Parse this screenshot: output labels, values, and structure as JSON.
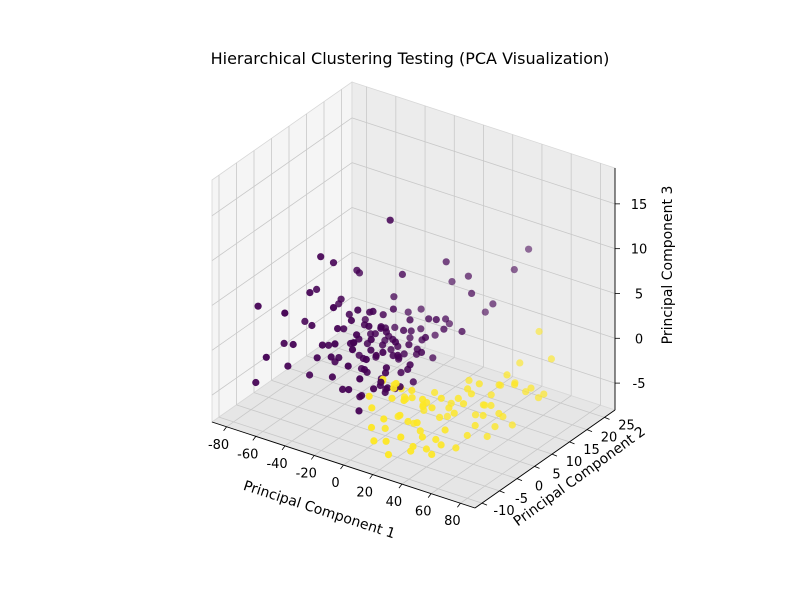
{
  "chart_data": {
    "type": "scatter",
    "projection": "3d",
    "title": "Hierarchical Clustering Testing (PCA Visualization)",
    "xlabel": "Principal Component 1",
    "ylabel": "Principal Component 2",
    "zlabel": "Principal Component 3",
    "xlim": [
      -90,
      90
    ],
    "ylim": [
      -12,
      28
    ],
    "zlim": [
      -8,
      19
    ],
    "xticks": [
      -80,
      -60,
      -40,
      -20,
      0,
      20,
      40,
      60,
      80
    ],
    "yticks": [
      -10,
      -5,
      0,
      5,
      10,
      15,
      20,
      25
    ],
    "zticks": [
      -5,
      0,
      5,
      10,
      15
    ],
    "grid": true,
    "colors": {
      "cluster_0": "#440154",
      "cluster_1": "#fde725"
    },
    "series": [
      {
        "cluster": 0,
        "points": [
          [
            -68,
            -8,
            5
          ],
          [
            -72,
            -7,
            -4
          ],
          [
            -60,
            -9,
            0
          ],
          [
            -55,
            -6,
            1
          ],
          [
            -50,
            -7,
            -1
          ],
          [
            -44,
            -8,
            2
          ],
          [
            -40,
            -5,
            -2
          ],
          [
            -48,
            -3,
            3
          ],
          [
            -36,
            -6,
            4
          ],
          [
            -30,
            -7,
            1
          ],
          [
            -25,
            -4,
            0
          ],
          [
            -18,
            -8,
            2
          ],
          [
            -20,
            -2,
            5
          ],
          [
            -12,
            -5,
            3
          ],
          [
            -8,
            -3,
            1
          ],
          [
            -15,
            -6,
            -2
          ],
          [
            -5,
            -7,
            4
          ],
          [
            -10,
            -1,
            2
          ],
          [
            -3,
            -4,
            0
          ],
          [
            2,
            -5,
            3
          ],
          [
            -6,
            -2,
            6
          ],
          [
            0,
            -6,
            1
          ],
          [
            4,
            -3,
            5
          ],
          [
            -2,
            0,
            2
          ],
          [
            6,
            -4,
            -1
          ],
          [
            8,
            -6,
            3
          ],
          [
            3,
            -1,
            4
          ],
          [
            -9,
            1,
            0
          ],
          [
            10,
            -2,
            2
          ],
          [
            1,
            -8,
            -3
          ],
          [
            -14,
            -1,
            -1
          ],
          [
            7,
            -7,
            5
          ],
          [
            12,
            -5,
            1
          ],
          [
            -4,
            -9,
            2
          ],
          [
            5,
            0,
            3
          ],
          [
            -7,
            -5,
            7
          ],
          [
            9,
            -1,
            -2
          ],
          [
            -1,
            2,
            1
          ],
          [
            14,
            -3,
            4
          ],
          [
            -11,
            -3,
            3
          ],
          [
            11,
            -8,
            0
          ],
          [
            -16,
            -7,
            5
          ],
          [
            2,
            -2,
            -1
          ],
          [
            -20,
            -5,
            1
          ],
          [
            6,
            1,
            2
          ],
          [
            15,
            -6,
            2
          ],
          [
            -6,
            -8,
            -1
          ],
          [
            3,
            -6,
            6
          ],
          [
            -13,
            -9,
            4
          ],
          [
            16,
            0,
            3
          ],
          [
            -3,
            -7,
            5
          ],
          [
            8,
            2,
            1
          ],
          [
            0,
            0,
            4
          ],
          [
            -8,
            -4,
            -3
          ],
          [
            13,
            -1,
            0
          ],
          [
            18,
            -4,
            3
          ],
          [
            -17,
            -2,
            2
          ],
          [
            4,
            -9,
            1
          ],
          [
            -22,
            -6,
            -1
          ],
          [
            10,
            1,
            4
          ],
          [
            -5,
            3,
            2
          ],
          [
            12,
            2,
            5
          ],
          [
            20,
            -2,
            1
          ],
          [
            -9,
            -6,
            6
          ],
          [
            1,
            -4,
            7
          ],
          [
            -24,
            -8,
            3
          ],
          [
            7,
            -3,
            -2
          ],
          [
            -2,
            -6,
            -2
          ],
          [
            15,
            -7,
            4
          ],
          [
            17,
            2,
            2
          ],
          [
            -10,
            4,
            1
          ],
          [
            22,
            -5,
            0
          ],
          [
            -19,
            -4,
            4
          ],
          [
            6,
            -8,
            3
          ],
          [
            -4,
            1,
            5
          ],
          [
            9,
            -5,
            6
          ],
          [
            19,
            0,
            -1
          ],
          [
            -12,
            -1,
            4
          ],
          [
            2,
            3,
            0
          ],
          [
            -7,
            0,
            3
          ],
          [
            14,
            3,
            1
          ],
          [
            -15,
            2,
            2
          ],
          [
            11,
            -4,
            -1
          ],
          [
            3,
            1,
            6
          ],
          [
            -27,
            -5,
            2
          ],
          [
            24,
            -3,
            2
          ],
          [
            -1,
            -9,
            4
          ],
          [
            5,
            -2,
            -2
          ],
          [
            -18,
            0,
            0
          ],
          [
            8,
            4,
            3
          ],
          [
            25,
            1,
            4
          ],
          [
            -8,
            6,
            2
          ],
          [
            20,
            4,
            5
          ],
          [
            -3,
            5,
            -1
          ],
          [
            16,
            -8,
            1
          ],
          [
            -21,
            3,
            3
          ],
          [
            13,
            5,
            2
          ],
          [
            0,
            7,
            1
          ],
          [
            27,
            -1,
            3
          ],
          [
            -11,
            7,
            5
          ],
          [
            5,
            8,
            2
          ],
          [
            18,
            6,
            0
          ],
          [
            -6,
            9,
            3
          ],
          [
            22,
            8,
            4
          ],
          [
            10,
            10,
            1
          ],
          [
            30,
            2,
            6
          ],
          [
            -2,
            11,
            3
          ],
          [
            15,
            12,
            2
          ],
          [
            -28,
            -1,
            6
          ],
          [
            28,
            5,
            4
          ],
          [
            -25,
            3,
            8
          ],
          [
            -30,
            -6,
            12
          ],
          [
            -26,
            -4,
            11
          ],
          [
            8,
            -2,
            17
          ],
          [
            -35,
            -7,
            8
          ],
          [
            -22,
            1,
            9
          ],
          [
            2,
            4,
            9
          ],
          [
            20,
            9,
            10
          ],
          [
            12,
            14,
            6
          ],
          [
            28,
            12,
            8
          ],
          [
            35,
            10,
            7
          ],
          [
            40,
            14,
            5
          ],
          [
            30,
            16,
            3
          ],
          [
            45,
            18,
            8
          ],
          [
            38,
            6,
            4
          ],
          [
            -45,
            -10,
            6
          ],
          [
            -40,
            -3,
            7
          ],
          [
            -32,
            0,
            5
          ],
          [
            50,
            20,
            10
          ],
          [
            -14,
            -9,
            8
          ]
        ]
      },
      {
        "cluster": 1,
        "points": [
          [
            5,
            -6,
            -3
          ],
          [
            8,
            -8,
            -1
          ],
          [
            10,
            -5,
            0
          ],
          [
            12,
            -9,
            -4
          ],
          [
            14,
            -4,
            -2
          ],
          [
            15,
            -7,
            1
          ],
          [
            16,
            -10,
            -5
          ],
          [
            18,
            -3,
            -1
          ],
          [
            18,
            -8,
            -3
          ],
          [
            20,
            -6,
            0
          ],
          [
            22,
            -9,
            -5
          ],
          [
            23,
            -2,
            -2
          ],
          [
            24,
            -7,
            1
          ],
          [
            25,
            -4,
            -4
          ],
          [
            26,
            -10,
            -6
          ],
          [
            27,
            -6,
            -1
          ],
          [
            28,
            -1,
            -3
          ],
          [
            29,
            -8,
            -2
          ],
          [
            30,
            -5,
            0
          ],
          [
            31,
            -3,
            -5
          ],
          [
            32,
            -9,
            -4
          ],
          [
            33,
            -2,
            -2
          ],
          [
            34,
            -7,
            -6
          ],
          [
            35,
            -4,
            -1
          ],
          [
            36,
            -6,
            -3
          ],
          [
            37,
            0,
            -4
          ],
          [
            38,
            -8,
            -5
          ],
          [
            39,
            -3,
            -2
          ],
          [
            40,
            -5,
            -6
          ],
          [
            41,
            1,
            -3
          ],
          [
            42,
            -7,
            -4
          ],
          [
            43,
            -2,
            -1
          ],
          [
            44,
            -4,
            -5
          ],
          [
            45,
            2,
            -2
          ],
          [
            46,
            -6,
            -6
          ],
          [
            47,
            0,
            -3
          ],
          [
            48,
            -3,
            -4
          ],
          [
            49,
            3,
            -1
          ],
          [
            50,
            -5,
            -5
          ],
          [
            51,
            1,
            -2
          ],
          [
            52,
            4,
            -4
          ],
          [
            53,
            -2,
            -6
          ],
          [
            54,
            2,
            -1
          ],
          [
            55,
            5,
            -3
          ],
          [
            56,
            0,
            -5
          ],
          [
            57,
            3,
            0
          ],
          [
            58,
            6,
            -2
          ],
          [
            59,
            1,
            -4
          ],
          [
            60,
            4,
            -6
          ],
          [
            61,
            7,
            -1
          ],
          [
            62,
            2,
            -3
          ],
          [
            63,
            5,
            -5
          ],
          [
            64,
            8,
            0
          ],
          [
            65,
            3,
            -2
          ],
          [
            66,
            6,
            -4
          ],
          [
            67,
            9,
            -1
          ],
          [
            68,
            4,
            -3
          ],
          [
            70,
            7,
            -5
          ],
          [
            72,
            10,
            -2
          ],
          [
            74,
            6,
            0
          ],
          [
            76,
            12,
            -3
          ],
          [
            78,
            9,
            -1
          ],
          [
            80,
            14,
            1
          ],
          [
            82,
            11,
            -2
          ],
          [
            7,
            -3,
            -6
          ],
          [
            11,
            -1,
            -5
          ],
          [
            13,
            0,
            -3
          ],
          [
            17,
            1,
            -6
          ],
          [
            21,
            2,
            -4
          ],
          [
            6,
            0,
            -2
          ],
          [
            9,
            2,
            -4
          ],
          [
            19,
            3,
            -5
          ],
          [
            24,
            4,
            -3
          ],
          [
            28,
            6,
            -6
          ],
          [
            33,
            5,
            -4
          ],
          [
            38,
            8,
            -2
          ],
          [
            44,
            10,
            -5
          ],
          [
            50,
            12,
            -3
          ],
          [
            56,
            15,
            -1
          ],
          [
            62,
            18,
            2
          ]
        ]
      }
    ]
  }
}
